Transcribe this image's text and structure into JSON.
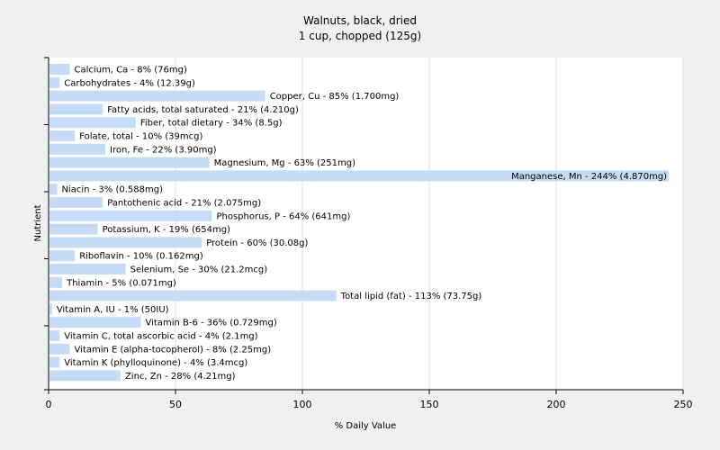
{
  "chart_data": {
    "type": "bar",
    "orientation": "horizontal",
    "title": "Walnuts, black, dried",
    "subtitle": "1 cup, chopped (125g)",
    "xlabel": "% Daily Value",
    "ylabel": "Nutrient",
    "xlim": [
      0,
      250
    ],
    "xticks": [
      "0",
      "50",
      "100",
      "150",
      "200",
      "250"
    ],
    "grid": true,
    "bar_color": "#c6dcf6",
    "categories": [
      "Calcium, Ca - 8% (76mg)",
      "Carbohydrates - 4% (12.39g)",
      "Copper, Cu - 85% (1.700mg)",
      "Fatty acids, total saturated - 21% (4.210g)",
      "Fiber, total dietary - 34% (8.5g)",
      "Folate, total - 10% (39mcg)",
      "Iron, Fe - 22% (3.90mg)",
      "Magnesium, Mg - 63% (251mg)",
      "Manganese, Mn - 244% (4.870mg)",
      "Niacin - 3% (0.588mg)",
      "Pantothenic acid - 21% (2.075mg)",
      "Phosphorus, P - 64% (641mg)",
      "Potassium, K - 19% (654mg)",
      "Protein - 60% (30.08g)",
      "Riboflavin - 10% (0.162mg)",
      "Selenium, Se - 30% (21.2mcg)",
      "Thiamin - 5% (0.071mg)",
      "Total lipid (fat) - 113% (73.75g)",
      "Vitamin A, IU - 1% (50IU)",
      "Vitamin B-6 - 36% (0.729mg)",
      "Vitamin C, total ascorbic acid - 4% (2.1mg)",
      "Vitamin E (alpha-tocopherol) - 8% (2.25mg)",
      "Vitamin K (phylloquinone) - 4% (3.4mcg)",
      "Zinc, Zn - 28% (4.21mg)"
    ],
    "values": [
      8,
      4,
      85,
      21,
      34,
      10,
      22,
      63,
      244,
      3,
      21,
      64,
      19,
      60,
      10,
      30,
      5,
      113,
      1,
      36,
      4,
      8,
      4,
      28
    ]
  }
}
